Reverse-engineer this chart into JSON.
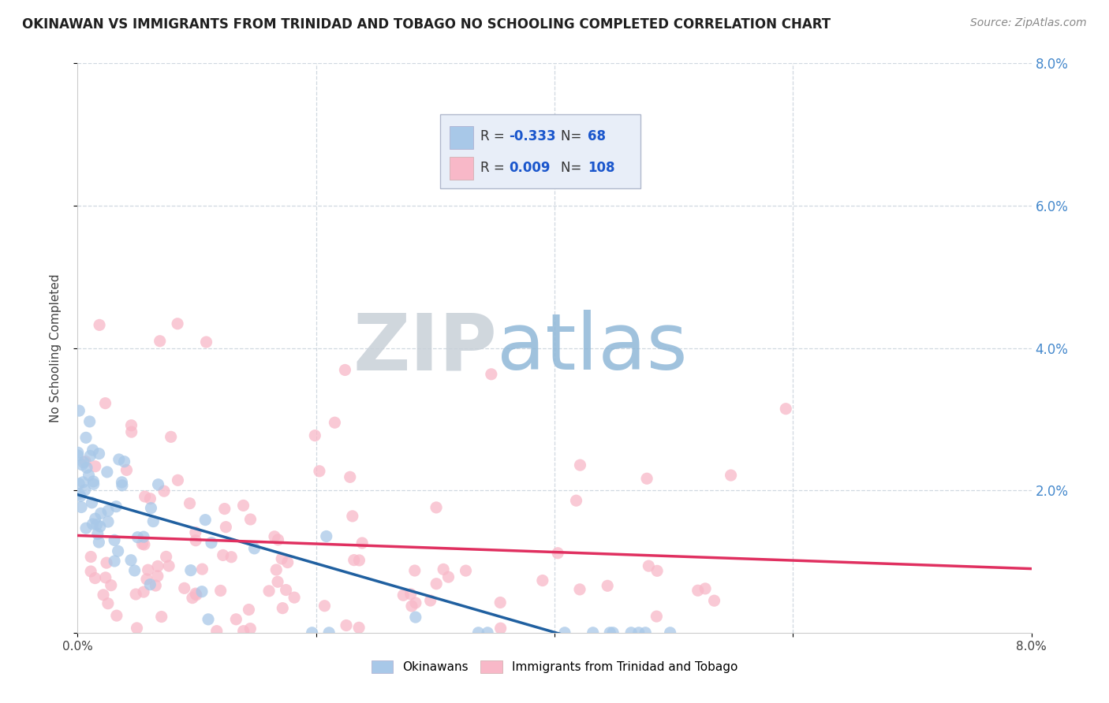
{
  "title": "OKINAWAN VS IMMIGRANTS FROM TRINIDAD AND TOBAGO NO SCHOOLING COMPLETED CORRELATION CHART",
  "source": "Source: ZipAtlas.com",
  "ylabel": "No Schooling Completed",
  "xlim": [
    0.0,
    0.08
  ],
  "ylim": [
    0.0,
    0.08
  ],
  "xticks": [
    0.0,
    0.08
  ],
  "yticks": [
    0.0,
    0.02,
    0.04,
    0.06,
    0.08
  ],
  "right_yticks": [
    0.02,
    0.04,
    0.06,
    0.08
  ],
  "right_ytick_labels": [
    "2.0%",
    "4.0%",
    "6.0%",
    "8.0%"
  ],
  "R_blue": -0.333,
  "N_blue": 68,
  "R_pink": 0.009,
  "N_pink": 108,
  "blue_color": "#a8c8e8",
  "pink_color": "#f8b8c8",
  "blue_line_color": "#2060a0",
  "pink_line_color": "#e03060",
  "background_color": "#ffffff",
  "watermark_ZIP": "ZIP",
  "watermark_atlas": "atlas",
  "watermark_color_ZIP": "#c8d0d8",
  "watermark_color_atlas": "#90b8d8",
  "grid_color": "#d0d8e0",
  "title_color": "#202020",
  "axis_label_color": "#404040",
  "right_axis_color": "#4488cc",
  "legend_R_color": "#1a56cc",
  "legend_box_color": "#e8eef8",
  "legend_border_color": "#b0b8cc"
}
